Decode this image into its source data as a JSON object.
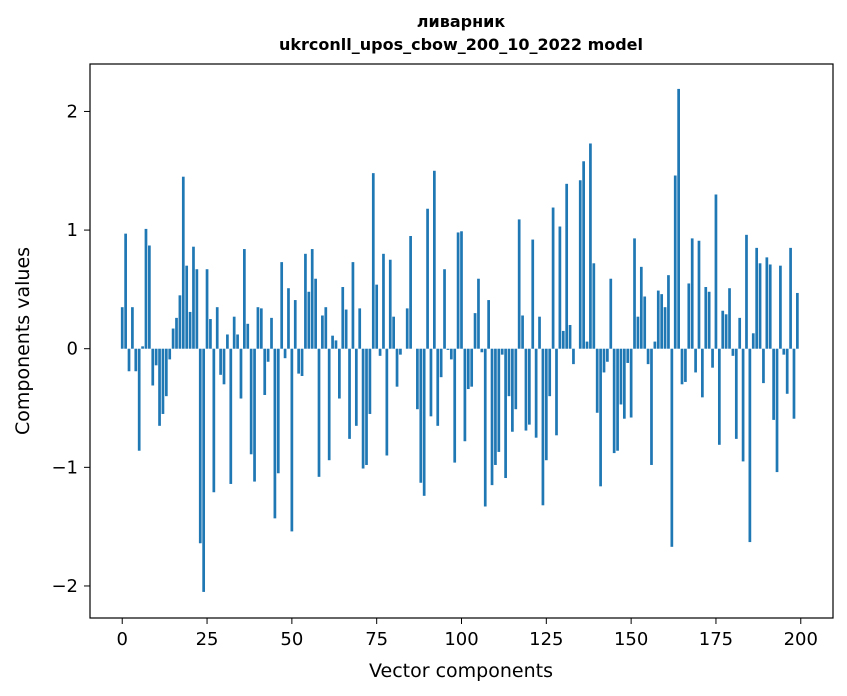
{
  "chart_data": {
    "type": "bar",
    "title": "ливарник",
    "subtitle": "ukrconll_upos_cbow_200_10_2022 model",
    "xlabel": "Vector components",
    "ylabel": "Components values",
    "xlim": [
      -9.5,
      209.5
    ],
    "ylim": [
      -2.27,
      2.4
    ],
    "xticks": [
      0,
      25,
      50,
      75,
      100,
      125,
      150,
      175,
      200
    ],
    "xtick_labels": [
      "0",
      "25",
      "50",
      "75",
      "100",
      "125",
      "150",
      "175",
      "200"
    ],
    "yticks": [
      -2,
      -1,
      0,
      1,
      2
    ],
    "ytick_labels": [
      "−2",
      "−1",
      "0",
      "1",
      "2"
    ],
    "grid": false,
    "bar_color": "#1f77b4",
    "x": [
      0,
      1,
      2,
      3,
      4,
      5,
      6,
      7,
      8,
      9,
      10,
      11,
      12,
      13,
      14,
      15,
      16,
      17,
      18,
      19,
      20,
      21,
      22,
      23,
      24,
      25,
      26,
      27,
      28,
      29,
      30,
      31,
      32,
      33,
      34,
      35,
      36,
      37,
      38,
      39,
      40,
      41,
      42,
      43,
      44,
      45,
      46,
      47,
      48,
      49,
      50,
      51,
      52,
      53,
      54,
      55,
      56,
      57,
      58,
      59,
      60,
      61,
      62,
      63,
      64,
      65,
      66,
      67,
      68,
      69,
      70,
      71,
      72,
      73,
      74,
      75,
      76,
      77,
      78,
      79,
      80,
      81,
      82,
      83,
      84,
      85,
      86,
      87,
      88,
      89,
      90,
      91,
      92,
      93,
      94,
      95,
      96,
      97,
      98,
      99,
      100,
      101,
      102,
      103,
      104,
      105,
      106,
      107,
      108,
      109,
      110,
      111,
      112,
      113,
      114,
      115,
      116,
      117,
      118,
      119,
      120,
      121,
      122,
      123,
      124,
      125,
      126,
      127,
      128,
      129,
      130,
      131,
      132,
      133,
      134,
      135,
      136,
      137,
      138,
      139,
      140,
      141,
      142,
      143,
      144,
      145,
      146,
      147,
      148,
      149,
      150,
      151,
      152,
      153,
      154,
      155,
      156,
      157,
      158,
      159,
      160,
      161,
      162,
      163,
      164,
      165,
      166,
      167,
      168,
      169,
      170,
      171,
      172,
      173,
      174,
      175,
      176,
      177,
      178,
      179,
      180,
      181,
      182,
      183,
      184,
      185,
      186,
      187,
      188,
      189,
      190,
      191,
      192,
      193,
      194,
      195,
      196,
      197,
      198,
      199
    ],
    "values": [
      0.35,
      0.97,
      -0.19,
      0.35,
      -0.19,
      -0.86,
      0.02,
      1.01,
      0.87,
      -0.31,
      -0.14,
      -0.65,
      -0.55,
      -0.4,
      -0.09,
      0.17,
      0.26,
      0.45,
      1.45,
      0.7,
      0.31,
      0.86,
      0.67,
      -1.64,
      -2.05,
      0.67,
      0.25,
      -1.21,
      0.35,
      -0.22,
      -0.3,
      0.12,
      -1.14,
      0.27,
      0.12,
      -0.42,
      0.84,
      0.21,
      -0.89,
      -1.12,
      0.35,
      0.34,
      -0.39,
      -0.11,
      0.26,
      -1.43,
      -1.05,
      0.73,
      -0.08,
      0.51,
      -1.54,
      0.41,
      -0.21,
      -0.23,
      0.8,
      0.48,
      0.84,
      0.59,
      -1.08,
      0.28,
      0.35,
      -0.94,
      0.11,
      0.07,
      -0.42,
      0.52,
      0.33,
      -0.76,
      0.73,
      -0.65,
      0.34,
      -1.01,
      -0.98,
      -0.55,
      1.48,
      0.54,
      -0.06,
      0.8,
      -0.9,
      0.75,
      0.27,
      -0.32,
      -0.05,
      0.0,
      0.34,
      0.95,
      0.0,
      -0.51,
      -1.13,
      -1.24,
      1.18,
      -0.57,
      1.5,
      -0.65,
      -0.24,
      0.67,
      -0.01,
      -0.09,
      -0.96,
      0.98,
      0.99,
      -0.78,
      -0.34,
      -0.32,
      0.3,
      0.59,
      -0.03,
      -1.33,
      0.41,
      -1.15,
      -0.98,
      -0.87,
      -0.05,
      -1.09,
      -0.4,
      -0.7,
      -0.51,
      1.09,
      0.28,
      -0.69,
      -0.64,
      0.92,
      -0.75,
      0.27,
      -1.32,
      -0.94,
      -0.4,
      1.19,
      -0.73,
      1.03,
      0.15,
      1.39,
      0.2,
      -0.13,
      0.0,
      1.42,
      1.58,
      0.06,
      1.73,
      0.72,
      -0.54,
      -1.16,
      -0.2,
      -0.11,
      0.59,
      -0.88,
      -0.86,
      -0.47,
      -0.59,
      -0.12,
      -0.58,
      0.93,
      0.27,
      0.69,
      0.44,
      -0.13,
      -0.98,
      0.06,
      0.49,
      0.46,
      0.35,
      0.62,
      -1.67,
      1.46,
      2.19,
      -0.3,
      -0.28,
      0.55,
      0.93,
      -0.2,
      0.91,
      -0.41,
      0.52,
      0.48,
      -0.16,
      1.3,
      -0.81,
      0.32,
      0.29,
      0.51,
      -0.06,
      -0.76,
      0.26,
      -0.95,
      0.96,
      -1.63,
      0.13,
      0.85,
      0.72,
      -0.29,
      0.77,
      0.71,
      -0.6,
      -1.04,
      0.7,
      -0.05,
      -0.38,
      0.85,
      -0.59,
      0.47
    ]
  }
}
